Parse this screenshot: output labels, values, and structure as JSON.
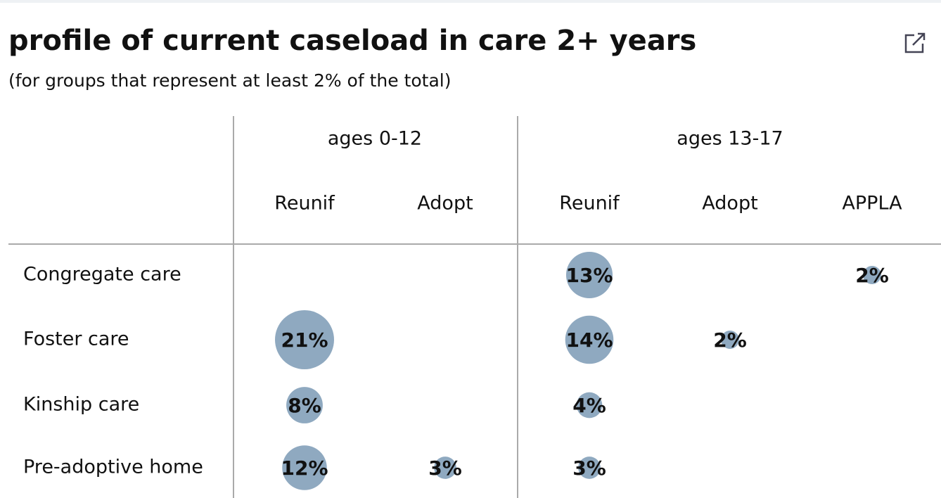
{
  "chart_data": {
    "type": "bubble_table",
    "title": "profile of current caseload in care 2+ years",
    "subtitle": "(for groups that represent at least 2% of the total)",
    "column_groups": [
      {
        "name": "ages 0-12",
        "columns": [
          "Reunif",
          "Adopt"
        ]
      },
      {
        "name": "ages 13-17",
        "columns": [
          "Reunif",
          "Adopt",
          "APPLA"
        ]
      }
    ],
    "color": "#8fa9c0",
    "rows": [
      {
        "name": "Congregate care",
        "values": [
          null,
          null,
          13,
          null,
          2
        ],
        "value_labels": [
          null,
          null,
          "13%",
          null,
          "2%"
        ]
      },
      {
        "name": "Foster care",
        "values": [
          21,
          null,
          14,
          2,
          null
        ],
        "value_labels": [
          "21%",
          null,
          "14%",
          "2%",
          null
        ]
      },
      {
        "name": "Kinship care",
        "values": [
          8,
          null,
          4,
          null,
          null
        ],
        "value_labels": [
          "8%",
          null,
          "4%",
          null,
          null
        ]
      },
      {
        "name": "Pre-adoptive home",
        "values": [
          12,
          3,
          3,
          null,
          null
        ],
        "value_labels": [
          "12%",
          "3%",
          "3%",
          null,
          null
        ]
      }
    ]
  }
}
